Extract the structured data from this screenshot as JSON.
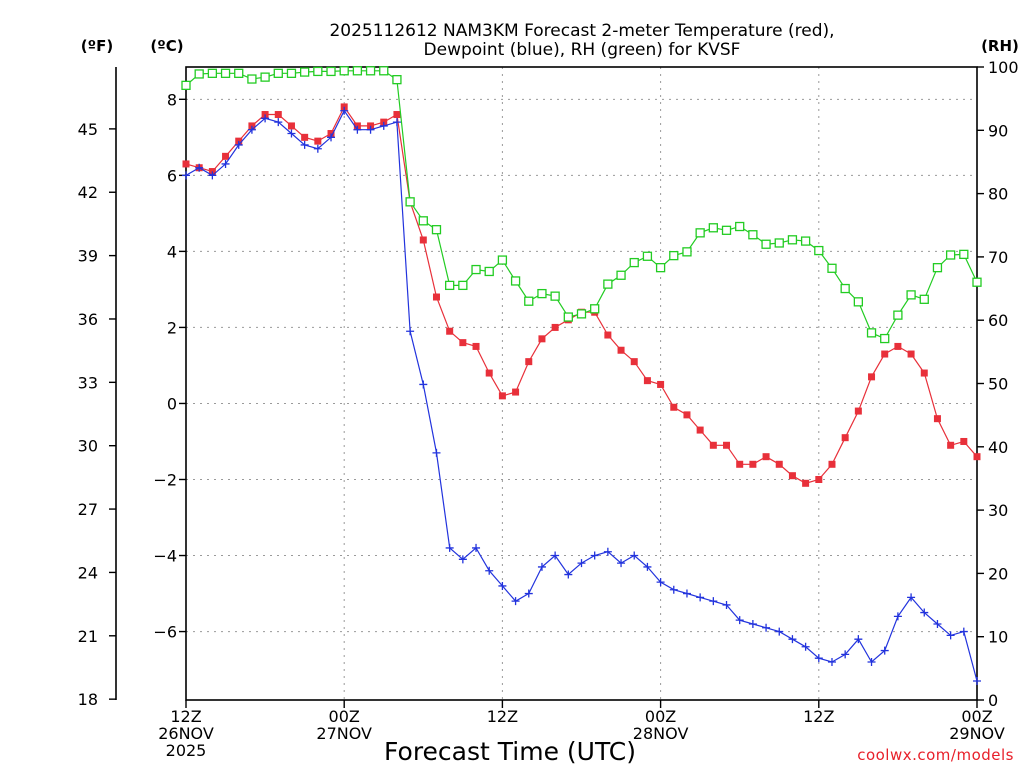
{
  "chart_data": {
    "type": "line",
    "title_line1": "2025112612 NAM3KM Forecast 2-meter Temperature (red),",
    "title_line2": "Dewpoint (blue), RH (green) for KVSF",
    "xlabel": "Forecast Time (UTC)",
    "credit": "coolwx.com/models",
    "unit_f": "(ºF)",
    "unit_c": "(ºC)",
    "unit_rh": "(RH)",
    "x_range_hours": [
      0,
      60
    ],
    "x_ticks": [
      {
        "hour": 0,
        "line1": "12Z",
        "line2": "26NOV",
        "line3": "2025"
      },
      {
        "hour": 12,
        "line1": "00Z",
        "line2": "27NOV",
        "line3": ""
      },
      {
        "hour": 24,
        "line1": "12Z",
        "line2": "",
        "line3": ""
      },
      {
        "hour": 36,
        "line1": "00Z",
        "line2": "28NOV",
        "line3": ""
      },
      {
        "hour": 48,
        "line1": "12Z",
        "line2": "",
        "line3": ""
      },
      {
        "hour": 60,
        "line1": "00Z",
        "line2": "29NOV",
        "line3": ""
      }
    ],
    "y_celsius": {
      "range": [
        -7.8,
        8.85
      ],
      "ticks": [
        -6,
        -4,
        -2,
        0,
        2,
        4,
        6,
        8
      ]
    },
    "y_fahrenheit": {
      "ticks": [
        18,
        21,
        24,
        27,
        30,
        33,
        36,
        39,
        42,
        45
      ]
    },
    "y_rh": {
      "range": [
        0,
        100
      ],
      "ticks": [
        0,
        10,
        20,
        30,
        40,
        50,
        60,
        70,
        80,
        90,
        100
      ]
    },
    "series": [
      {
        "name": "2-meter Temperature (°C)",
        "color": "#e8303a",
        "marker": "filled-square",
        "axis": "celsius",
        "hours": [
          0,
          1,
          2,
          3,
          4,
          5,
          6,
          7,
          8,
          9,
          10,
          11,
          12,
          13,
          14,
          15,
          16,
          17,
          18,
          19,
          20,
          21,
          22,
          23,
          24,
          25,
          26,
          27,
          28,
          29,
          30,
          31,
          32,
          33,
          34,
          35,
          36,
          37,
          38,
          39,
          40,
          41,
          42,
          43,
          44,
          45,
          46,
          47,
          48,
          49,
          50,
          51,
          52,
          53,
          54,
          55,
          56,
          57,
          58,
          59,
          60
        ],
        "values": [
          6.3,
          6.2,
          6.1,
          6.5,
          6.9,
          7.3,
          7.6,
          7.6,
          7.3,
          7.0,
          6.9,
          7.1,
          7.8,
          7.3,
          7.3,
          7.4,
          7.6,
          5.3,
          4.3,
          2.8,
          1.9,
          1.6,
          1.5,
          0.8,
          0.2,
          0.3,
          1.1,
          1.7,
          2.0,
          2.2,
          2.4,
          2.4,
          1.8,
          1.4,
          1.1,
          0.6,
          0.5,
          -0.1,
          -0.3,
          -0.7,
          -1.1,
          -1.1,
          -1.6,
          -1.6,
          -1.4,
          -1.6,
          -1.9,
          -2.1,
          -2.0,
          -1.6,
          -0.9,
          -0.2,
          0.7,
          1.3,
          1.5,
          1.3,
          0.8,
          -0.4,
          -1.1,
          -1.0,
          -1.4
        ]
      },
      {
        "name": "Dewpoint (°C)",
        "color": "#2233dd",
        "marker": "plus",
        "axis": "celsius",
        "hours": [
          0,
          1,
          2,
          3,
          4,
          5,
          6,
          7,
          8,
          9,
          10,
          11,
          12,
          13,
          14,
          15,
          16,
          17,
          18,
          19,
          20,
          21,
          22,
          23,
          24,
          25,
          26,
          27,
          28,
          29,
          30,
          31,
          32,
          33,
          34,
          35,
          36,
          37,
          38,
          39,
          40,
          41,
          42,
          43,
          44,
          45,
          46,
          47,
          48,
          49,
          50,
          51,
          52,
          53,
          54,
          55,
          56,
          57,
          58,
          59,
          60
        ],
        "values": [
          6.0,
          6.2,
          6.0,
          6.3,
          6.8,
          7.2,
          7.5,
          7.4,
          7.1,
          6.8,
          6.7,
          7.0,
          7.7,
          7.2,
          7.2,
          7.3,
          7.4,
          1.9,
          0.5,
          -1.3,
          -3.8,
          -4.1,
          -3.8,
          -4.4,
          -4.8,
          -5.2,
          -5.0,
          -4.3,
          -4.0,
          -4.5,
          -4.2,
          -4.0,
          -3.9,
          -4.2,
          -4.0,
          -4.3,
          -4.7,
          -4.9,
          -5.0,
          -5.1,
          -5.2,
          -5.3,
          -5.7,
          -5.8,
          -5.9,
          -6.0,
          -6.2,
          -6.4,
          -6.7,
          -6.8,
          -6.6,
          -6.2,
          -6.8,
          -6.5,
          -5.6,
          -5.1,
          -5.5,
          -5.8,
          -6.1,
          -6.0,
          -7.3
        ]
      },
      {
        "name": "RH (%)",
        "color": "#22cc22",
        "marker": "open-square",
        "axis": "rh",
        "hours": [
          0,
          1,
          2,
          3,
          4,
          5,
          6,
          7,
          8,
          9,
          10,
          11,
          12,
          13,
          14,
          15,
          16,
          17,
          18,
          19,
          20,
          21,
          22,
          23,
          24,
          25,
          26,
          27,
          28,
          29,
          30,
          31,
          32,
          33,
          34,
          35,
          36,
          37,
          38,
          39,
          40,
          41,
          42,
          43,
          44,
          45,
          46,
          47,
          48,
          49,
          50,
          51,
          52,
          53,
          54,
          55,
          56,
          57,
          58,
          59,
          60
        ],
        "values": [
          97.1,
          98.9,
          99.0,
          99.0,
          99.0,
          98.1,
          98.4,
          99.0,
          99.0,
          99.2,
          99.3,
          99.3,
          99.4,
          99.4,
          99.4,
          99.4,
          98.0,
          78.7,
          75.7,
          74.3,
          65.5,
          65.5,
          68.0,
          67.7,
          69.5,
          66.2,
          63.0,
          64.2,
          63.8,
          60.5,
          61.0,
          61.8,
          65.7,
          67.1,
          69.1,
          70.1,
          68.3,
          70.2,
          70.8,
          73.8,
          74.6,
          74.2,
          74.8,
          73.5,
          72.0,
          72.2,
          72.7,
          72.5,
          71.0,
          68.2,
          65.0,
          62.9,
          58.0,
          57.1,
          60.8,
          64.0,
          63.3,
          68.3,
          70.3,
          70.4,
          66.0
        ]
      }
    ]
  }
}
